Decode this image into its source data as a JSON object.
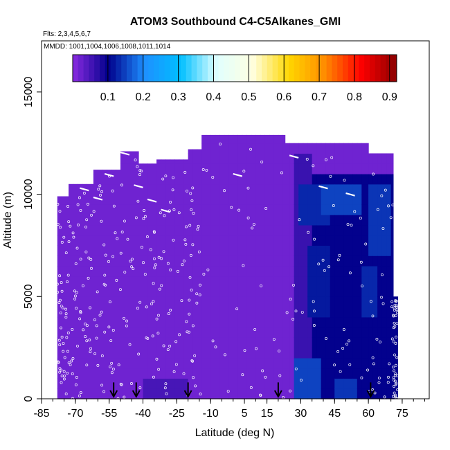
{
  "chart_data": {
    "type": "heatmap",
    "title": "ATOM3 Southbound C4-C5Alkanes_GMI",
    "flights_text": "Flts: 2,3,4,5,6,7",
    "mmdd_text": "MMDD: 1001,1004,1006,1008,1011,1014",
    "xlabel": "Latitude (deg N)",
    "ylabel": "Altitude (m)",
    "xlim": [
      -85,
      87
    ],
    "ylim": [
      0,
      17500
    ],
    "x_ticks": [
      -85,
      -70,
      -55,
      -40,
      -25,
      -10,
      5,
      15,
      30,
      45,
      60,
      75
    ],
    "y_ticks": [
      0,
      5000,
      10000,
      15000
    ],
    "colorbar": {
      "range": [
        0,
        0.92
      ],
      "ticks": [
        0.1,
        0.2,
        0.3,
        0.4,
        0.5,
        0.6,
        0.7,
        0.8,
        0.9
      ],
      "colors": [
        "#8a2be2",
        "#00008b",
        "#1e90ff",
        "#00bfff",
        "#e0ffff",
        "#ffffe0",
        "#ffd700",
        "#ff8c00",
        "#ff0000",
        "#8b0000"
      ]
    },
    "background_value": 0.02,
    "coverage": [
      {
        "lat": [
          -78,
          -73
        ],
        "alt_top": 9900
      },
      {
        "lat": [
          -73,
          -62
        ],
        "alt_top": 10500
      },
      {
        "lat": [
          -62,
          -50
        ],
        "alt_top": 11200
      },
      {
        "lat": [
          -50,
          -42
        ],
        "alt_top": 12100
      },
      {
        "lat": [
          -42,
          -34
        ],
        "alt_top": 11500
      },
      {
        "lat": [
          -34,
          -20
        ],
        "alt_top": 11700
      },
      {
        "lat": [
          -20,
          -14
        ],
        "alt_top": 12200
      },
      {
        "lat": [
          -14,
          23
        ],
        "alt_top": 12900
      },
      {
        "lat": [
          23,
          60
        ],
        "alt_top": 12500
      },
      {
        "lat": [
          60,
          71
        ],
        "alt_top": 12000
      },
      {
        "lat": [
          71,
          73
        ],
        "alt_top": 5000
      }
    ],
    "high_regions": [
      {
        "lat": [
          27,
          35
        ],
        "alt": [
          0,
          12000
        ],
        "value": 0.06
      },
      {
        "lat": [
          35,
          72
        ],
        "alt": [
          0,
          11000
        ],
        "value": 0.1
      },
      {
        "lat": [
          30,
          42
        ],
        "alt": [
          8500,
          10500
        ],
        "value": 0.13
      },
      {
        "lat": [
          40,
          56
        ],
        "alt": [
          9200,
          10400
        ],
        "value": 0.15
      },
      {
        "lat": [
          60,
          70
        ],
        "alt": [
          7000,
          10500
        ],
        "value": 0.14
      },
      {
        "lat": [
          33,
          42
        ],
        "alt": [
          4000,
          7500
        ],
        "value": 0.12
      },
      {
        "lat": [
          28,
          38
        ],
        "alt": [
          0,
          2000
        ],
        "value": 0.15
      },
      {
        "lat": [
          45,
          55
        ],
        "alt": [
          0,
          1200
        ],
        "value": 0.14
      },
      {
        "lat": [
          58,
          64
        ],
        "alt": [
          4000,
          6500
        ],
        "value": 0.13
      },
      {
        "lat": [
          -40,
          -20
        ],
        "alt": [
          0,
          1200
        ],
        "value": 0.05
      }
    ],
    "arrows_lat": [
      -53,
      -43,
      -20,
      20,
      61
    ]
  }
}
